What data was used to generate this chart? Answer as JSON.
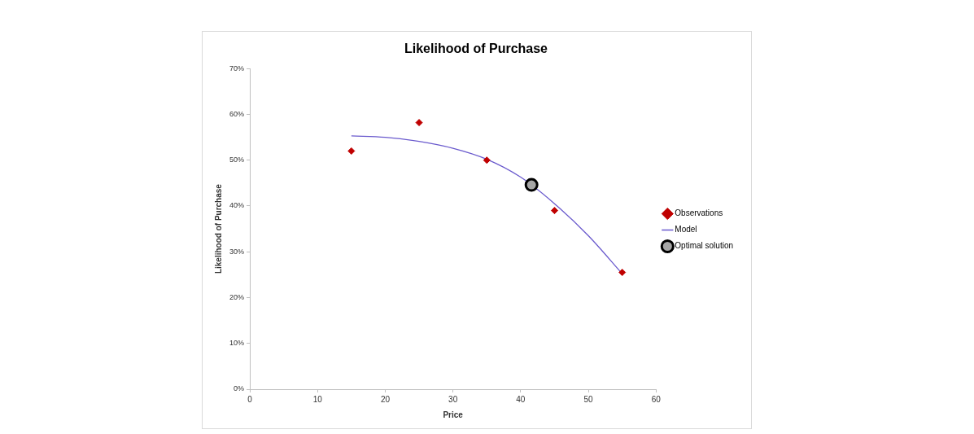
{
  "chart_data": {
    "type": "scatter",
    "title": "Likelihood of Purchase",
    "xlabel": "Price",
    "ylabel": "Likelihood of Purchase",
    "xlim": [
      0,
      60
    ],
    "xticks": [
      0,
      10,
      20,
      30,
      40,
      50,
      60
    ],
    "ylim": [
      0,
      70
    ],
    "yticks": [
      {
        "value": 0,
        "label": "0%"
      },
      {
        "value": 10,
        "label": "10%"
      },
      {
        "value": 20,
        "label": "20%"
      },
      {
        "value": 30,
        "label": "30%"
      },
      {
        "value": 40,
        "label": "40%"
      },
      {
        "value": 50,
        "label": "50%"
      },
      {
        "value": 60,
        "label": "60%"
      },
      {
        "value": 70,
        "label": "70%"
      }
    ],
    "grid": false,
    "legend": "right",
    "series": [
      {
        "name": "Observations",
        "type": "scatter",
        "marker": "diamond",
        "color": "#c00000",
        "x": [
          15,
          25,
          35,
          45,
          55
        ],
        "values": [
          52,
          58.2,
          50,
          39,
          25.5
        ]
      },
      {
        "name": "Model",
        "type": "line",
        "marker": "none",
        "color": "#6a5acd",
        "x": [
          15,
          20,
          25,
          30,
          35,
          40,
          45,
          50,
          55
        ],
        "values": [
          55.3,
          55,
          54.1,
          52.6,
          50.2,
          46.3,
          40.5,
          33.5,
          25.2
        ]
      },
      {
        "name": "Optimal solution",
        "type": "scatter",
        "marker": "circle",
        "color": "#a6a6a6",
        "x": [
          41.6
        ],
        "values": [
          44.6
        ]
      }
    ]
  }
}
